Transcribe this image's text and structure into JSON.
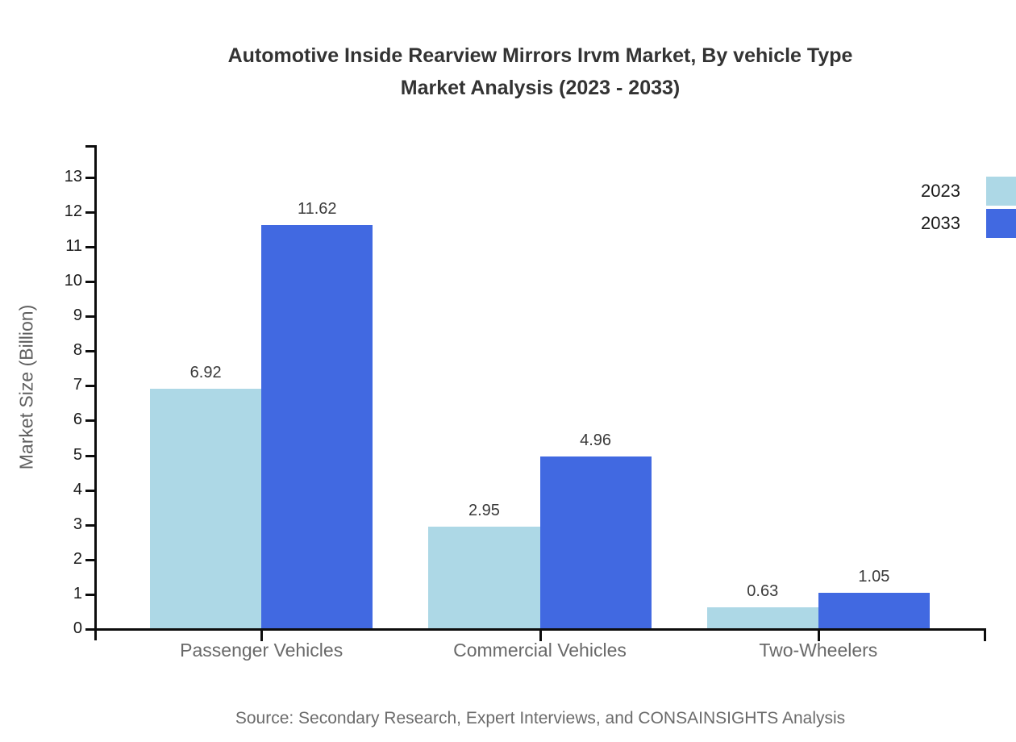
{
  "title": {
    "line1": "Automotive Inside Rearview Mirrors Irvm Market, By vehicle Type",
    "line2": "Market Analysis (2023 - 2033)"
  },
  "chart_data": {
    "type": "bar",
    "categories": [
      "Passenger Vehicles",
      "Commercial Vehicles",
      "Two-Wheelers"
    ],
    "series": [
      {
        "name": "2023",
        "color": "#ADD8E6",
        "values": [
          6.92,
          2.95,
          0.63
        ]
      },
      {
        "name": "2033",
        "color": "#4169E1",
        "values": [
          11.62,
          4.96,
          1.05
        ]
      }
    ],
    "xlabel": "",
    "ylabel": "Market Size (Billion)",
    "ylim": [
      0,
      14
    ],
    "yticks": [
      0,
      1,
      2,
      3,
      4,
      5,
      6,
      7,
      8,
      9,
      10,
      11,
      12,
      13
    ],
    "grid": false,
    "legend_position": "top-right",
    "value_labels": [
      "6.92",
      "2.95",
      "0.63",
      "11.62",
      "4.96",
      "1.05"
    ]
  },
  "source": "Source: Secondary Research, Expert Interviews, and CONSAINSIGHTS Analysis",
  "palette": {
    "series_2023": "#ADD8E6",
    "series_2033": "#4169E1",
    "axis": "#0d0d0d",
    "tick_label": "#1a1a1a",
    "category_label": "#696969",
    "value_label": "#3a3a3a",
    "title_text": "#333333",
    "source_text": "#6b6b6b",
    "y_axis_title": "#606060",
    "background": "#ffffff"
  }
}
